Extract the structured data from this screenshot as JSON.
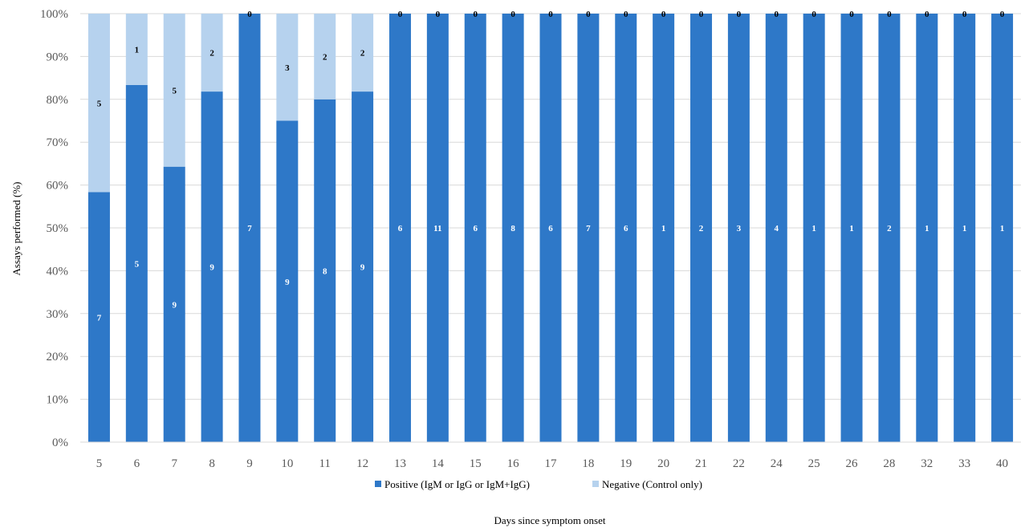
{
  "chart_data": {
    "type": "bar",
    "stacked": true,
    "percent_stacked": true,
    "title": "",
    "xlabel": "Days since symptom onset",
    "ylabel": "Assays performed (%)",
    "ylim": [
      0,
      100
    ],
    "y_ticks": [
      "0%",
      "10%",
      "20%",
      "30%",
      "40%",
      "50%",
      "60%",
      "70%",
      "80%",
      "90%",
      "100%"
    ],
    "grid": true,
    "legend_position": "bottom",
    "categories": [
      "5",
      "6",
      "7",
      "8",
      "9",
      "10",
      "11",
      "12",
      "13",
      "14",
      "15",
      "16",
      "17",
      "18",
      "19",
      "20",
      "21",
      "22",
      "24",
      "25",
      "26",
      "28",
      "32",
      "33",
      "40"
    ],
    "series": [
      {
        "name": "Positive (IgM or IgG or IgM+IgG)",
        "color": "#2e78c8",
        "label_color": "#ffffff",
        "values": [
          7,
          5,
          9,
          9,
          7,
          9,
          8,
          9,
          6,
          11,
          6,
          8,
          6,
          7,
          6,
          1,
          2,
          3,
          4,
          1,
          1,
          2,
          1,
          1,
          1
        ]
      },
      {
        "name": "Negative (Control only)",
        "color": "#b6d2ee",
        "label_color": "#000000",
        "values": [
          5,
          1,
          5,
          2,
          0,
          3,
          2,
          2,
          0,
          0,
          0,
          0,
          0,
          0,
          0,
          0,
          0,
          0,
          0,
          0,
          0,
          0,
          0,
          0,
          0
        ]
      }
    ]
  }
}
